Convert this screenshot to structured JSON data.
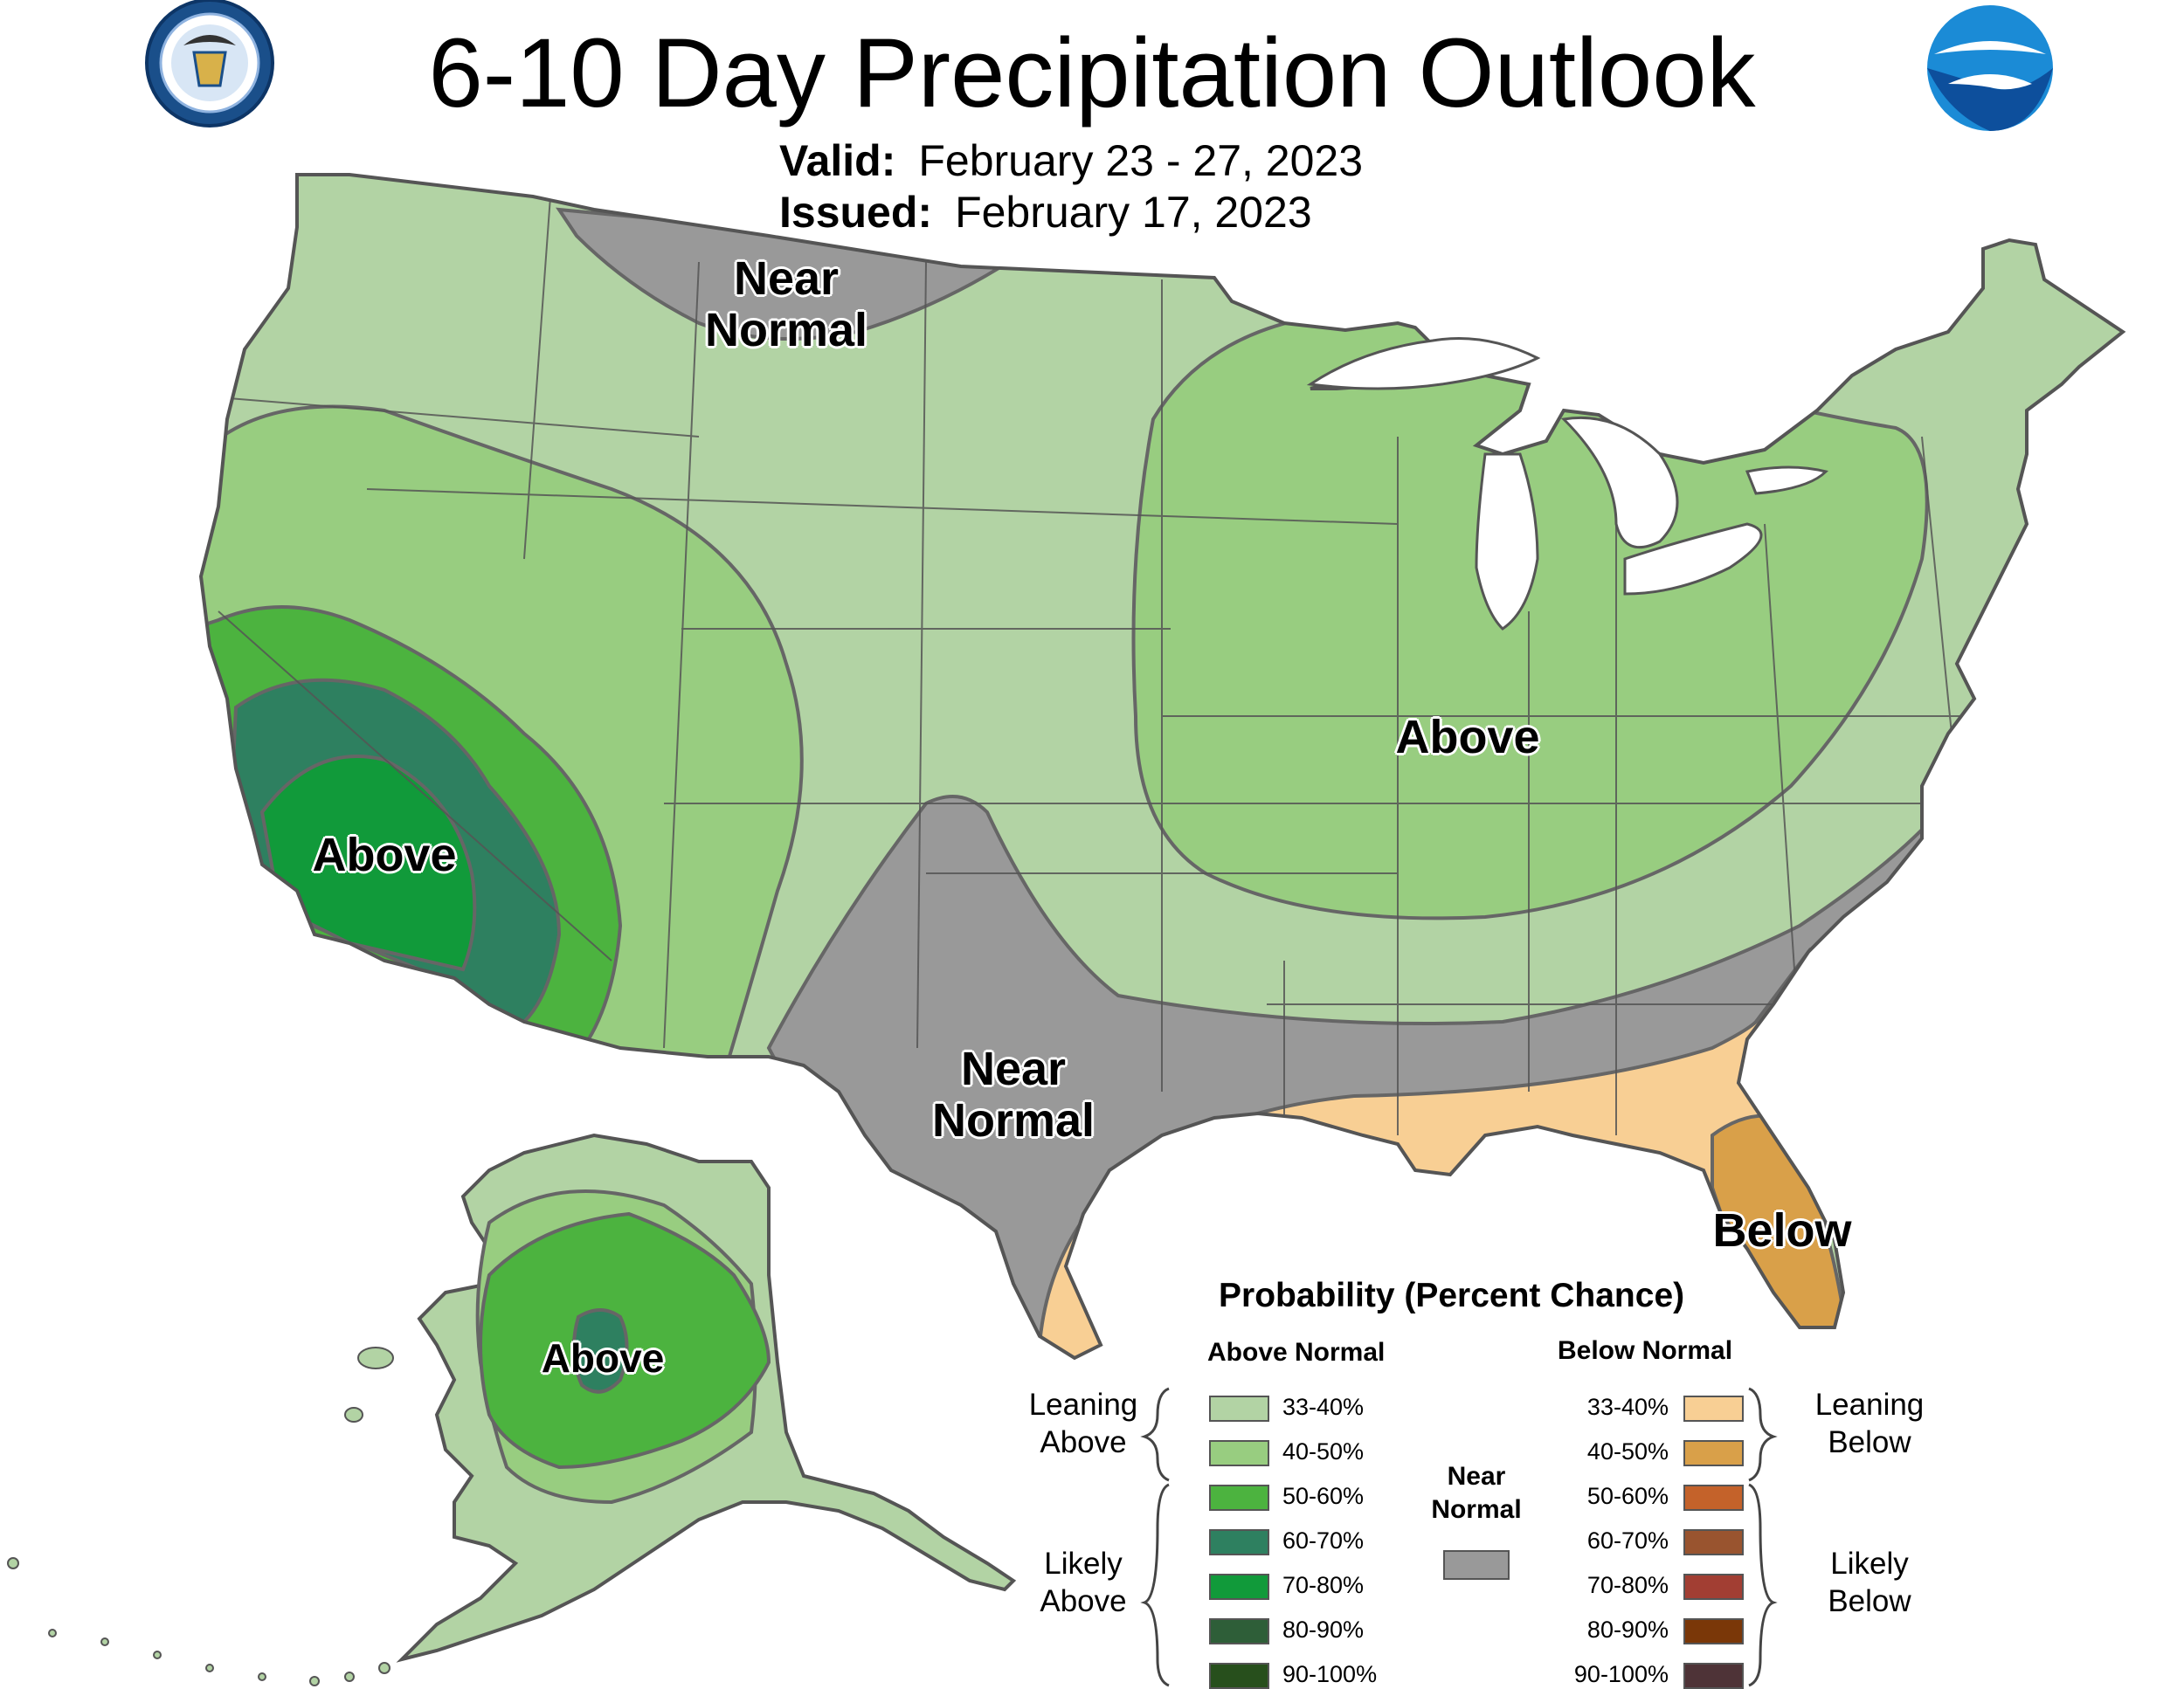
{
  "header": {
    "title": "6-10 Day Precipitation Outlook",
    "valid_label": "Valid:",
    "valid_value": "February 23 - 27, 2023",
    "issued_label": "Issued:",
    "issued_value": "February 17, 2023"
  },
  "logos": {
    "doc_seal": "DEPARTMENT OF COMMERCE · UNITED STATES OF AMERICA",
    "noaa": "NOAA"
  },
  "map_labels": {
    "north_near_1": "Near",
    "north_near_2": "Normal",
    "west_above": "Above",
    "east_above": "Above",
    "south_near_1": "Near",
    "south_near_2": "Normal",
    "below": "Below",
    "alaska_above": "Above"
  },
  "legend": {
    "title": "Probability (Percent Chance)",
    "above_header": "Above Normal",
    "below_header": "Below Normal",
    "leaning_above": [
      "Leaning",
      "Above"
    ],
    "likely_above": [
      "Likely",
      "Above"
    ],
    "leaning_below": [
      "Leaning",
      "Below"
    ],
    "likely_below": [
      "Likely",
      "Below"
    ],
    "near_normal": [
      "Near",
      "Normal"
    ],
    "near_normal_color": "#999999",
    "above_items": [
      {
        "label": "33-40%",
        "color": "#b2d3a4"
      },
      {
        "label": "40-50%",
        "color": "#98cd80"
      },
      {
        "label": "50-60%",
        "color": "#4cb33f"
      },
      {
        "label": "60-70%",
        "color": "#2e8060"
      },
      {
        "label": "70-80%",
        "color": "#119a3a"
      },
      {
        "label": "80-90%",
        "color": "#2e5e38"
      },
      {
        "label": "90-100%",
        "color": "#274f1c"
      }
    ],
    "below_items": [
      {
        "label": "33-40%",
        "color": "#f8cf94"
      },
      {
        "label": "40-50%",
        "color": "#d9a049"
      },
      {
        "label": "50-60%",
        "color": "#c4622a"
      },
      {
        "label": "60-70%",
        "color": "#99542f"
      },
      {
        "label": "70-80%",
        "color": "#a23e33"
      },
      {
        "label": "80-90%",
        "color": "#7a3708"
      },
      {
        "label": "90-100%",
        "color": "#4e3337"
      }
    ]
  },
  "colors": {
    "near_normal": "#999999",
    "leaning_above": "#b2d3a4",
    "above_40_50": "#98cd80",
    "above_50_60": "#4cb33f",
    "above_60_70": "#2e8060",
    "above_70_80": "#119a3a",
    "below_33_40": "#f8cf94",
    "below_40_50": "#d9a049",
    "state_line": "#555555"
  }
}
